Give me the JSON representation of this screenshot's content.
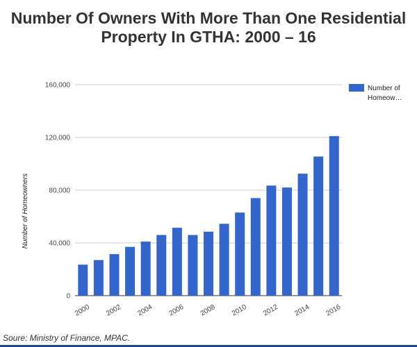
{
  "header": {
    "title_line1": "Number Of Owners With More Than One Residential",
    "title_line2": "Property In GTHA: 2000 – 16"
  },
  "footer": {
    "source": "Soure: Ministry of Finance, MPAC."
  },
  "colors": {
    "bar": "#3366cc",
    "grid": "#cccccc",
    "baseline": "#333333",
    "rule": "#1a4a8a"
  },
  "chart_data": {
    "type": "bar",
    "ylabel": "Number of Homeowners",
    "ylim": [
      0,
      160000
    ],
    "yticks": [
      0,
      40000,
      80000,
      120000,
      160000
    ],
    "ytick_labels": [
      "0",
      "40,000",
      "80,000",
      "120,000",
      "160,000"
    ],
    "grid": true,
    "legend_position": "right",
    "x_tick_labels": [
      "2000",
      "2002",
      "2004",
      "2006",
      "2008",
      "2010",
      "2012",
      "2014",
      "2016"
    ],
    "categories": [
      "2000",
      "2001",
      "2002",
      "2003",
      "2004",
      "2005",
      "2006",
      "2007",
      "2008",
      "2009",
      "2010",
      "2011",
      "2012",
      "2013",
      "2014",
      "2015",
      "2016"
    ],
    "series": [
      {
        "name": "Number of Homeow…",
        "legend_lines": [
          "Number of",
          "Homeow…"
        ],
        "values": [
          23500,
          27000,
          31500,
          37000,
          41000,
          46000,
          51500,
          46000,
          48500,
          54500,
          63000,
          74000,
          83500,
          82000,
          92500,
          105500,
          121000
        ]
      }
    ]
  }
}
